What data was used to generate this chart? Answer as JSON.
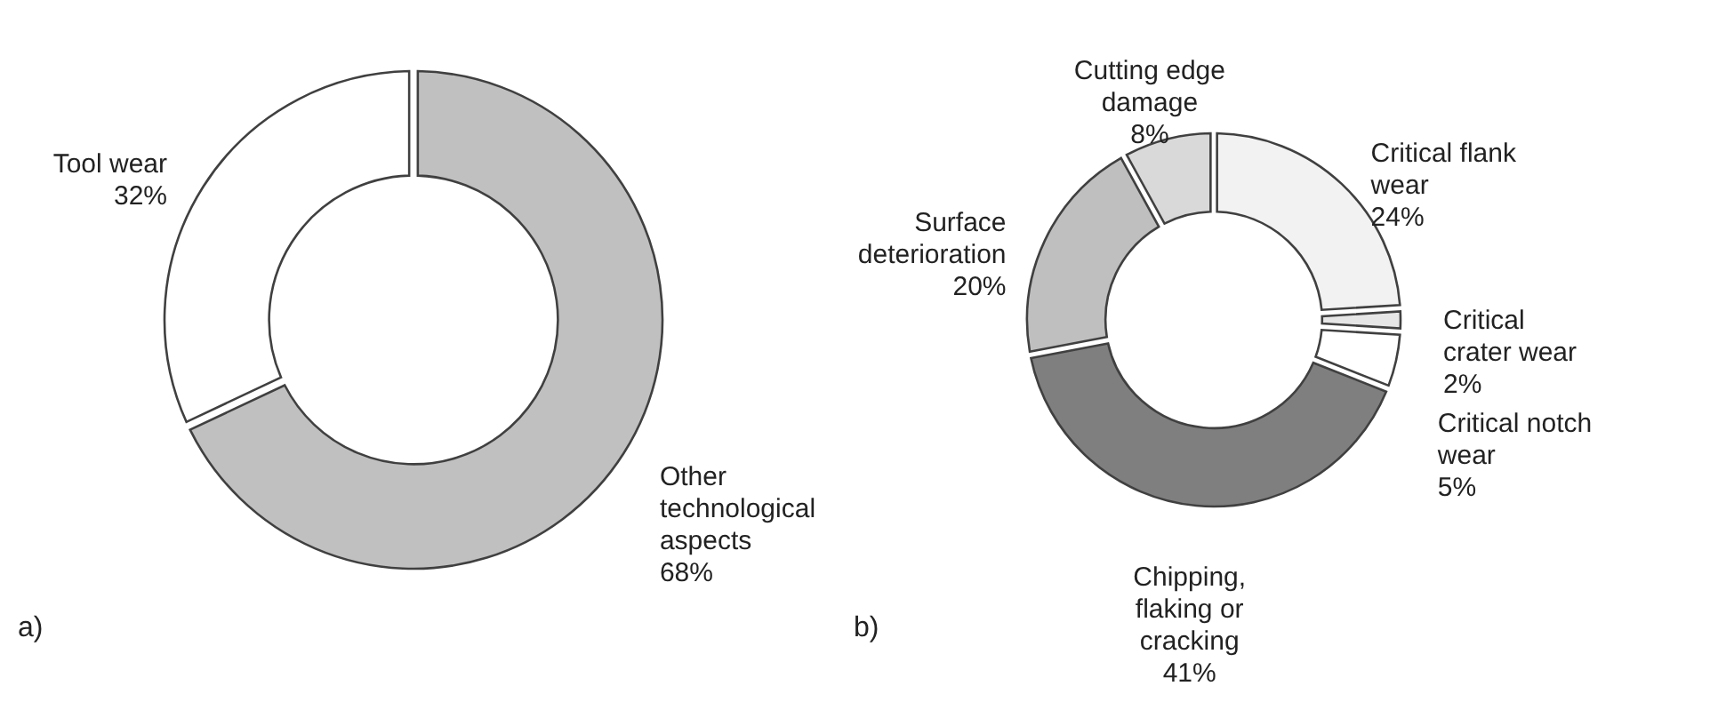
{
  "chart_data": [
    {
      "type": "donut",
      "categories": [
        "Other technological aspects",
        "Tool wear"
      ],
      "values": [
        68,
        32
      ],
      "value_labels": [
        "68%",
        "32%"
      ],
      "colors": [
        "#c0c0c0",
        "#ffffff"
      ],
      "annotations": [
        "a)"
      ]
    },
    {
      "type": "donut",
      "categories": [
        "Critical flank wear",
        "Critical crater wear",
        "Critical notch wear",
        "Chipping, flaking or cracking",
        "Surface deterioration",
        "Cutting edge damage"
      ],
      "values": [
        24,
        2,
        5,
        41,
        20,
        8
      ],
      "value_labels": [
        "24%",
        "2%",
        "5%",
        "41%",
        "20%",
        "8%"
      ],
      "colors": [
        "#f2f2f2",
        "#e6e6e6",
        "#ffffff",
        "#7f7f7f",
        "#bfbfbf",
        "#d9d9d9"
      ],
      "annotations": [
        "b)"
      ]
    }
  ]
}
